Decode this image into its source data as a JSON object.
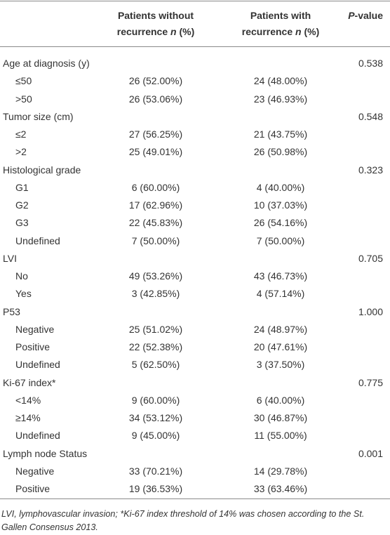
{
  "table": {
    "header": {
      "col_without": {
        "line1": "Patients without",
        "line2": "recurrence",
        "n": "n",
        "unit": "(%)"
      },
      "col_with": {
        "line1": "Patients with",
        "line2": "recurrence",
        "n": "n",
        "unit": "(%)"
      },
      "p_value": {
        "italic": "P",
        "rest": "-value"
      }
    },
    "groups": [
      {
        "label": "Age at diagnosis (y)",
        "p_value": "0.538",
        "rows": [
          {
            "label": "≤50",
            "without": "26 (52.00%)",
            "with": "24 (48.00%)"
          },
          {
            "label": ">50",
            "without": "26 (53.06%)",
            "with": "23 (46.93%)"
          }
        ]
      },
      {
        "label": "Tumor size (cm)",
        "p_value": "0.548",
        "rows": [
          {
            "label": "≤2",
            "without": "27 (56.25%)",
            "with": "21 (43.75%)"
          },
          {
            "label": ">2",
            "without": "25 (49.01%)",
            "with": "26 (50.98%)"
          }
        ]
      },
      {
        "label": "Histological grade",
        "p_value": "0.323",
        "rows": [
          {
            "label": "G1",
            "without": "6 (60.00%)",
            "with": "4 (40.00%)"
          },
          {
            "label": "G2",
            "without": "17 (62.96%)",
            "with": "10 (37.03%)"
          },
          {
            "label": "G3",
            "without": "22 (45.83%)",
            "with": "26 (54.16%)"
          },
          {
            "label": "Undefined",
            "without": "7 (50.00%)",
            "with": "7 (50.00%)"
          }
        ]
      },
      {
        "label": "LVI",
        "p_value": "0.705",
        "rows": [
          {
            "label": "No",
            "without": "49 (53.26%)",
            "with": "43 (46.73%)"
          },
          {
            "label": "Yes",
            "without": "3 (42.85%)",
            "with": "4 (57.14%)"
          }
        ]
      },
      {
        "label": "P53",
        "p_value": "1.000",
        "rows": [
          {
            "label": "Negative",
            "without": "25 (51.02%)",
            "with": "24 (48.97%)"
          },
          {
            "label": "Positive",
            "without": "22 (52.38%)",
            "with": "20 (47.61%)"
          },
          {
            "label": "Undefined",
            "without": "5 (62.50%)",
            "with": "3 (37.50%)"
          }
        ]
      },
      {
        "label": "Ki-67 index*",
        "p_value": "0.775",
        "rows": [
          {
            "label": "<14%",
            "without": "9 (60.00%)",
            "with": "6 (40.00%)"
          },
          {
            "label": "≥14%",
            "without": "34 (53.12%)",
            "with": "30 (46.87%)"
          },
          {
            "label": "Undefined",
            "without": "9 (45.00%)",
            "with": "11 (55.00%)"
          }
        ]
      },
      {
        "label": "Lymph node Status",
        "p_value": "0.001",
        "rows": [
          {
            "label": "Negative",
            "without": "33 (70.21%)",
            "with": "14 (29.78%)"
          },
          {
            "label": "Positive",
            "without": "19 (36.53%)",
            "with": "33 (63.46%)"
          }
        ]
      }
    ]
  },
  "footnote": "LVI, lymphovascular invasion; *Ki-67 index threshold of 14% was chosen according to the St. Gallen Consensus 2013."
}
